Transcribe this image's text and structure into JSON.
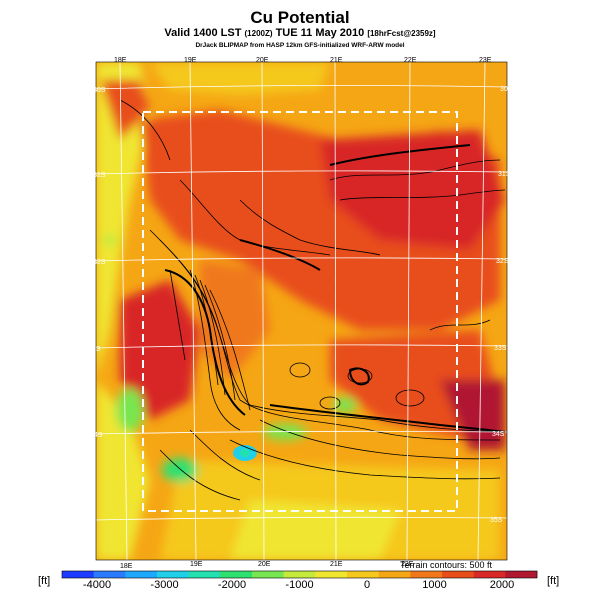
{
  "header": {
    "title": "Cu Potential",
    "subtitle_main": "Valid 1400 LST",
    "subtitle_small1": "(1200Z)",
    "subtitle_date": "TUE 11 May 2010",
    "subtitle_small2": "[18hrFcst@2359z]",
    "credit": "DrJack BLIPMAP from HASP 12km GFS-initialized WRF-ARW model"
  },
  "map": {
    "lon_labels_top": [
      "18E",
      "19E",
      "20E",
      "21E",
      "22E",
      "23E"
    ],
    "lon_labels_bottom": [
      "18E",
      "19E",
      "20E",
      "21E",
      "22E"
    ],
    "lat_labels_left": [
      "30S",
      "31S",
      "32S",
      "33S",
      "34S",
      "35S"
    ],
    "lat_labels_right": [
      "30S",
      "31S",
      "32S",
      "33S",
      "34S",
      "35S"
    ]
  },
  "colorbar": {
    "unit_left": "[ft]",
    "unit_right": "[ft]",
    "ticks": [
      "-4000",
      "-3000",
      "-2000",
      "-1000",
      "0",
      "1000",
      "2000"
    ],
    "colors": [
      "#1e3cff",
      "#2a7bff",
      "#1fa8ff",
      "#20d0e8",
      "#22e0b0",
      "#2ee070",
      "#78e650",
      "#c4ea3c",
      "#f0e630",
      "#f5c81e",
      "#f5a614",
      "#f0781a",
      "#e84e1a",
      "#d82828",
      "#b01830"
    ]
  },
  "terrain_note": "Terrain contours: 500 ft"
}
